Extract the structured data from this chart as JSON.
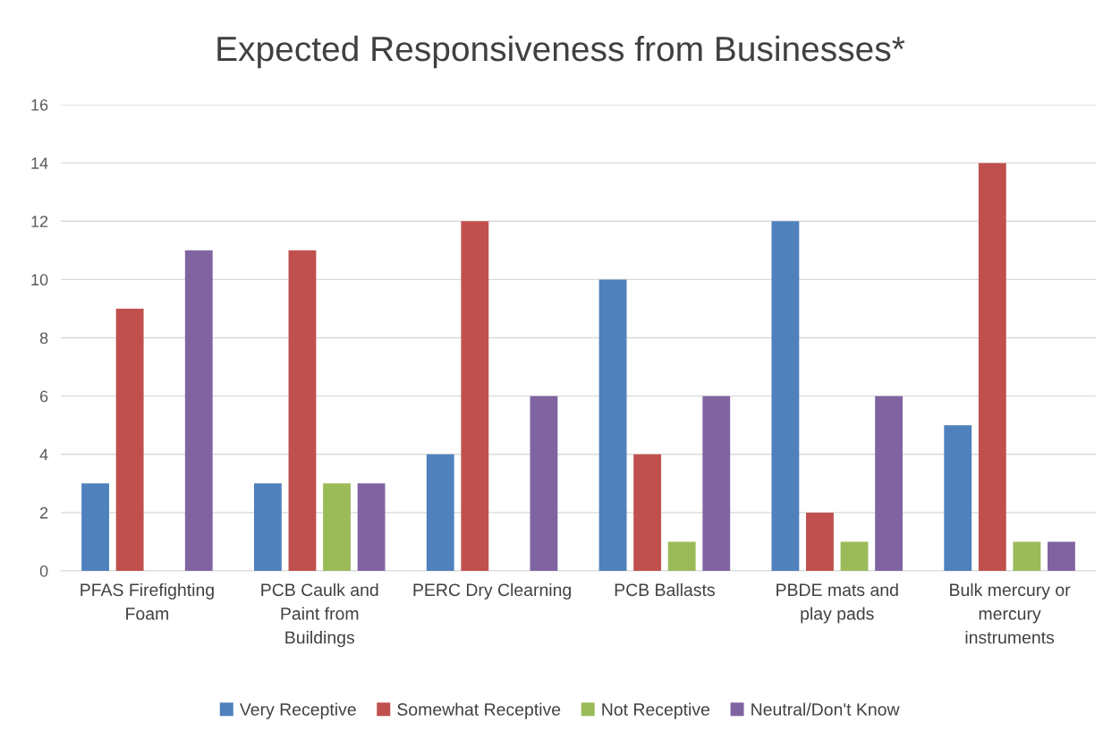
{
  "chart_data": {
    "type": "bar",
    "title": "Expected Responsiveness from Businesses*",
    "categories": [
      "PFAS Firefighting\nFoam",
      "PCB Caulk and\nPaint from\nBuildings",
      "PERC Dry Clearning",
      "PCB Ballasts",
      "PBDE mats and\nplay pads",
      "Bulk mercury or\nmercury\ninstruments"
    ],
    "series": [
      {
        "name": "Very Receptive",
        "color": "#4f81bd",
        "values": [
          3,
          3,
          4,
          10,
          12,
          5
        ]
      },
      {
        "name": "Somewhat Receptive",
        "color": "#c0504d",
        "values": [
          9,
          11,
          12,
          4,
          2,
          14
        ]
      },
      {
        "name": "Not Receptive",
        "color": "#9bbb59",
        "values": [
          0,
          3,
          0,
          1,
          1,
          1
        ]
      },
      {
        "name": "Neutral/Don't Know",
        "color": "#8064a2",
        "values": [
          11,
          3,
          6,
          6,
          6,
          1
        ]
      }
    ],
    "ylim": [
      0,
      16
    ],
    "yticks": [
      0,
      2,
      4,
      6,
      8,
      10,
      12,
      14,
      16
    ],
    "grid": "y",
    "legend": "bottom"
  }
}
